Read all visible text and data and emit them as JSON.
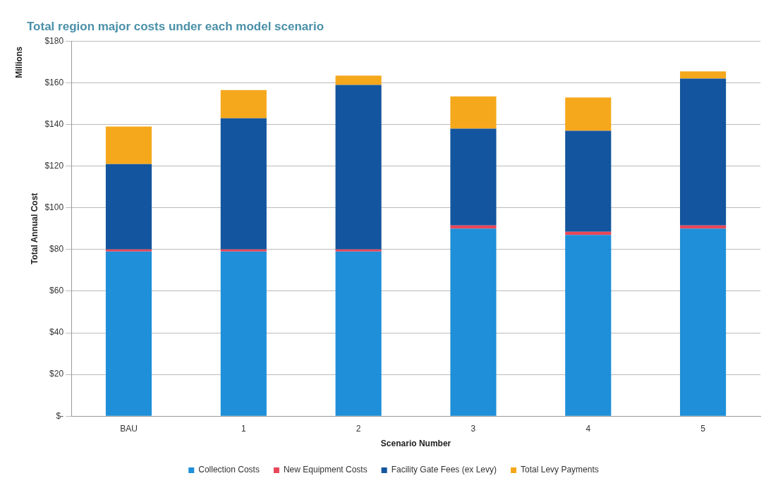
{
  "chart_data": {
    "type": "bar",
    "title": "Total region major costs under each model scenario",
    "xlabel": "Scenario Number",
    "ylabel": "Total Annual Cost",
    "annotations": [
      "Millions"
    ],
    "categories": [
      "BAU",
      "1",
      "2",
      "3",
      "4",
      "5"
    ],
    "stacked": true,
    "series": [
      {
        "name": "Collection Costs",
        "color": "#1e8fd8",
        "values": [
          79,
          79,
          79,
          90,
          87,
          90
        ]
      },
      {
        "name": "New Equipment Costs",
        "color": "#e8475a",
        "values": [
          1,
          1,
          1,
          1.5,
          1.5,
          1.5
        ]
      },
      {
        "name": "Facility Gate Fees (ex Levy)",
        "color": "#13559e",
        "values": [
          41,
          63,
          79,
          46.5,
          48.5,
          70.5
        ]
      },
      {
        "name": "Total Levy Payments",
        "color": "#f5a81c",
        "values": [
          18,
          13.5,
          4.5,
          15.5,
          16,
          3.5
        ]
      }
    ],
    "ylim": [
      0,
      180
    ],
    "yticks": [
      {
        "value": 0,
        "label": "$-"
      },
      {
        "value": 20,
        "label": "$20"
      },
      {
        "value": 40,
        "label": "$40"
      },
      {
        "value": 60,
        "label": "$60"
      },
      {
        "value": 80,
        "label": "$80"
      },
      {
        "value": 100,
        "label": "$100"
      },
      {
        "value": 120,
        "label": "$120"
      },
      {
        "value": 140,
        "label": "$140"
      },
      {
        "value": 160,
        "label": "$160"
      },
      {
        "value": 180,
        "label": "$180"
      }
    ],
    "grid": "y",
    "legend": "bottom"
  }
}
